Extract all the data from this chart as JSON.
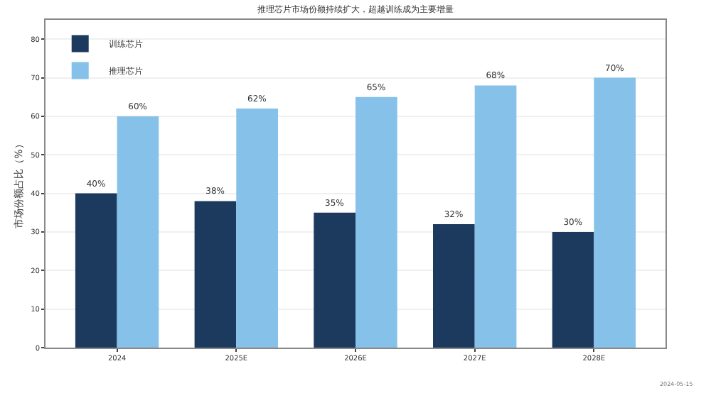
{
  "chart_data": {
    "type": "bar",
    "title": "推理芯片市场份额持续扩大，超越训练成为主要增量",
    "ylabel": "市场份额占比（%）",
    "categories": [
      "2024",
      "2025E",
      "2026E",
      "2027E",
      "2028E"
    ],
    "series": [
      {
        "name": "训练芯片",
        "color": "#1c3a5e",
        "values": [
          40,
          38,
          35,
          32,
          30
        ]
      },
      {
        "name": "推理芯片",
        "color": "#85c1e9",
        "values": [
          60,
          62,
          65,
          68,
          70
        ]
      }
    ],
    "value_labels": [
      [
        "40%",
        "38%",
        "35%",
        "32%",
        "30%"
      ],
      [
        "60%",
        "62%",
        "65%",
        "68%",
        "70%"
      ]
    ],
    "ylim": [
      0,
      85
    ],
    "yticks": [
      0,
      10,
      20,
      30,
      40,
      50,
      60,
      70,
      80
    ],
    "grid": "y",
    "legend": "top left",
    "annotations": [
      "2024-05-15"
    ]
  }
}
